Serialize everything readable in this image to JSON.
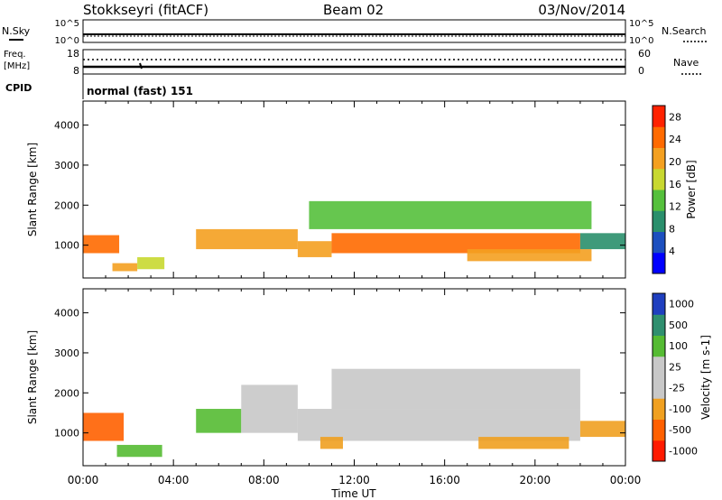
{
  "header": {
    "station": "Stokkseyri (fitACF)",
    "beam": "Beam 02",
    "date": "03/Nov/2014"
  },
  "noise_panel": {
    "left_label": "N.Sky",
    "right_label": "N.Search",
    "left_ticks": [
      "10^5",
      "10^0"
    ],
    "right_ticks": [
      "10^5",
      "10^0"
    ]
  },
  "freq_panel": {
    "left_label_line1": "Freq.",
    "left_label_line2": "[MHz]",
    "right_label": "Nave",
    "left_ticks": [
      "18",
      "8"
    ],
    "right_ticks": [
      "60",
      "0"
    ]
  },
  "cpid_panel": {
    "label": "CPID",
    "value": "normal (fast) 151"
  },
  "chart_data": [
    {
      "type": "heatmap",
      "title": "",
      "xlabel": "Time UT",
      "ylabel": "Slant Range [km]",
      "x_ticks": [
        "00:00",
        "04:00",
        "08:00",
        "12:00",
        "16:00",
        "20:00",
        "00:00"
      ],
      "xlim_hours": [
        0,
        24
      ],
      "y_ticks": [
        1000,
        2000,
        3000,
        4000
      ],
      "ylim": [
        180,
        4600
      ],
      "colorbar_label": "Power [dB]",
      "colorbar_ticks": [
        4,
        8,
        12,
        16,
        20,
        24,
        28
      ],
      "colorbar_range": [
        0,
        30
      ],
      "colors": [
        "#0000ff",
        "#1c4fbf",
        "#2a8f6c",
        "#55c03c",
        "#c8d830",
        "#f4a020",
        "#ff6a00",
        "#ff2200"
      ],
      "bands": [
        {
          "t": [
            0.0,
            1.6
          ],
          "r": [
            800,
            1250
          ],
          "level": 24
        },
        {
          "t": [
            1.3,
            2.4
          ],
          "r": [
            350,
            550
          ],
          "level": 20
        },
        {
          "t": [
            2.4,
            3.6
          ],
          "r": [
            400,
            700
          ],
          "level": 16
        },
        {
          "t": [
            5.0,
            9.5
          ],
          "r": [
            900,
            1400
          ],
          "level": 20
        },
        {
          "t": [
            9.5,
            11.0
          ],
          "r": [
            700,
            1100
          ],
          "level": 22
        },
        {
          "t": [
            11.0,
            22.0
          ],
          "r": [
            800,
            1300
          ],
          "level": 24
        },
        {
          "t": [
            10.0,
            22.5
          ],
          "r": [
            1400,
            2100
          ],
          "level": 12
        },
        {
          "t": [
            17.0,
            22.5
          ],
          "r": [
            600,
            900
          ],
          "level": 20
        },
        {
          "t": [
            22.0,
            24.0
          ],
          "r": [
            900,
            1300
          ],
          "level": 8
        }
      ]
    },
    {
      "type": "heatmap",
      "title": "",
      "xlabel": "Time UT",
      "ylabel": "Slant Range [km]",
      "x_ticks": [
        "00:00",
        "04:00",
        "08:00",
        "12:00",
        "16:00",
        "20:00",
        "00:00"
      ],
      "xlim_hours": [
        0,
        24
      ],
      "y_ticks": [
        1000,
        2000,
        3000,
        4000
      ],
      "ylim": [
        180,
        4600
      ],
      "colorbar_label": "Velocity [m s-1]",
      "colorbar_ticks": [
        "1000",
        "500",
        "100",
        "25",
        "-25",
        "-100",
        "-500",
        "-1000"
      ],
      "colors": [
        "#1f3fbf",
        "#2f8f6f",
        "#55bb33",
        "#c8c8c8",
        "#c8c8c8",
        "#f0a020",
        "#ff6000",
        "#ff1a00"
      ],
      "bands": [
        {
          "t": [
            0.0,
            1.8
          ],
          "r": [
            800,
            1500
          ],
          "level": -500
        },
        {
          "t": [
            1.5,
            3.5
          ],
          "r": [
            400,
            700
          ],
          "level": 100
        },
        {
          "t": [
            5.0,
            7.0
          ],
          "r": [
            1000,
            1600
          ],
          "level": 100
        },
        {
          "t": [
            7.0,
            9.5
          ],
          "r": [
            1000,
            2200
          ],
          "level": 25
        },
        {
          "t": [
            9.5,
            22.0
          ],
          "r": [
            800,
            1600
          ],
          "level": 25
        },
        {
          "t": [
            11.0,
            22.0
          ],
          "r": [
            1600,
            2600
          ],
          "level": 25
        },
        {
          "t": [
            10.5,
            11.5
          ],
          "r": [
            600,
            900
          ],
          "level": -100
        },
        {
          "t": [
            17.5,
            21.5
          ],
          "r": [
            600,
            900
          ],
          "level": -100
        },
        {
          "t": [
            22.0,
            24.0
          ],
          "r": [
            900,
            1300
          ],
          "level": -100
        }
      ]
    }
  ]
}
